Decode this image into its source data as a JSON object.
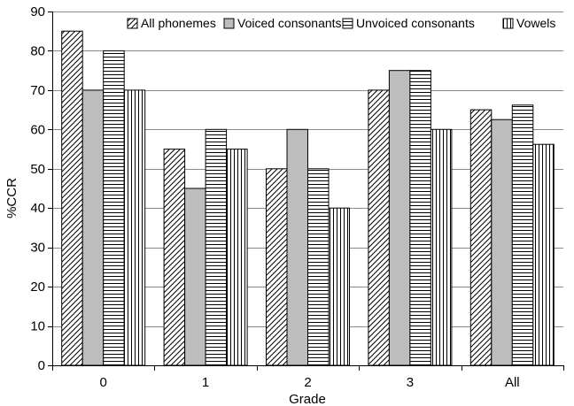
{
  "chart_data": {
    "type": "bar",
    "categories": [
      "0",
      "1",
      "2",
      "3",
      "All"
    ],
    "series": [
      {
        "name": "All phonemes",
        "pattern": "diagonal-hatch",
        "values": [
          85,
          55,
          50,
          70,
          65
        ]
      },
      {
        "name": "Voiced consonants",
        "pattern": "solid-gray",
        "values": [
          70,
          45,
          60,
          75,
          62.5
        ]
      },
      {
        "name": "Unvoiced consonants",
        "pattern": "horizontal-lines",
        "values": [
          80,
          60,
          50,
          75,
          66.2
        ]
      },
      {
        "name": "Vowels",
        "pattern": "vertical-lines",
        "values": [
          70,
          55,
          40,
          60,
          56.2
        ]
      }
    ],
    "xlabel": "Grade",
    "ylabel": "%CCR",
    "ylim": [
      0,
      90
    ],
    "yticks": [
      0,
      10,
      20,
      30,
      40,
      50,
      60,
      70,
      80,
      90
    ],
    "grid": true,
    "legend_position": "top"
  },
  "colors": {
    "gray_fill": "#bdbdbd",
    "grid": "#8c8c8c",
    "stroke": "#000000"
  }
}
